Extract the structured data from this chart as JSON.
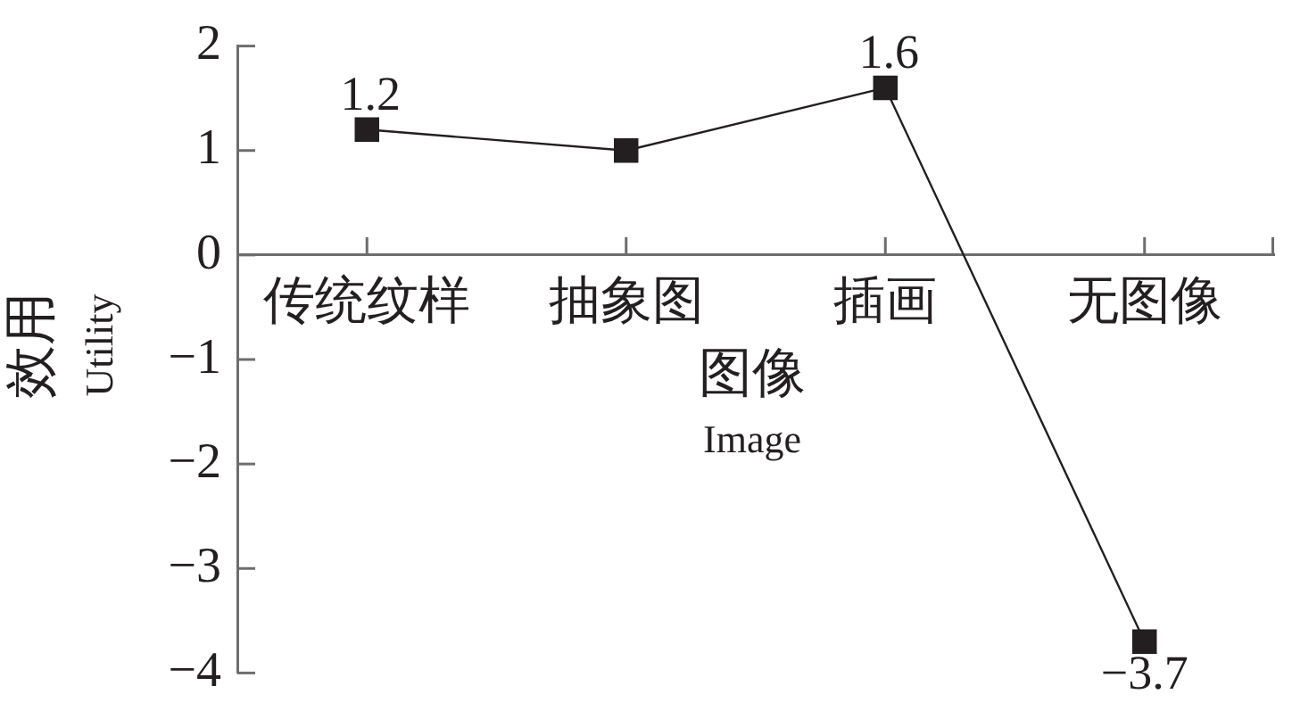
{
  "chart_data": {
    "type": "line",
    "categories": [
      "传统纹样",
      "抽象图",
      "插画",
      "无图像"
    ],
    "values": [
      1.2,
      1,
      1.6,
      -3.7
    ],
    "color": "#231f20",
    "value_labels": [
      "1.2",
      null,
      "1.6",
      "−3.7"
    ],
    "xlabel": "图像\nImage",
    "ylabel": "效用\nUtility",
    "ylim": [
      -4,
      2
    ],
    "yticks": [
      {
        "value": -4,
        "label": "−4"
      },
      {
        "value": -3,
        "label": "−3"
      },
      {
        "value": -2,
        "label": "−2"
      },
      {
        "value": -1,
        "label": "−1"
      },
      0,
      1,
      2
    ],
    "marker": "square",
    "line_style": "solid"
  }
}
